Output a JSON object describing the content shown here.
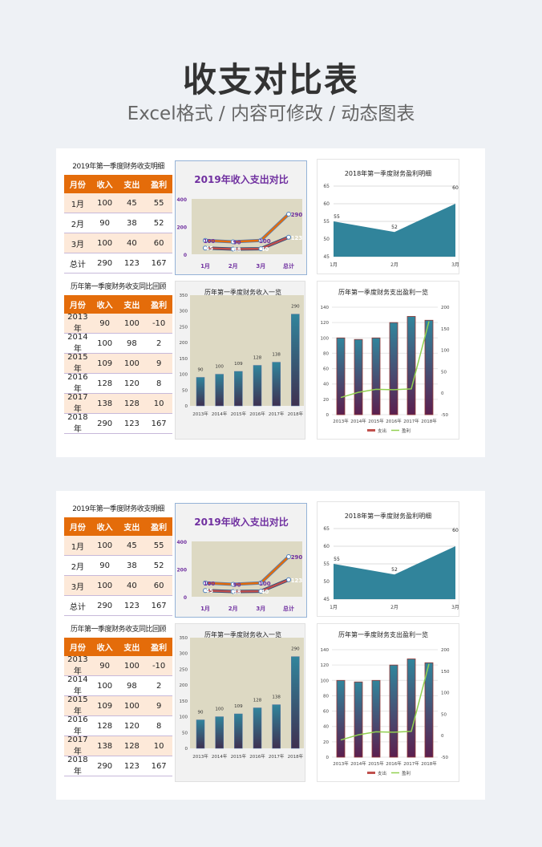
{
  "header": {
    "title": "收支对比表",
    "subtitle": "Excel格式 / 内容可修改 / 动态图表"
  },
  "quarter_table": {
    "caption": "2019年第一季度财务收支明细",
    "columns": [
      "月份",
      "收入",
      "支出",
      "盈利"
    ],
    "rows": [
      [
        "1月",
        "100",
        "45",
        "55"
      ],
      [
        "2月",
        "90",
        "38",
        "52"
      ],
      [
        "3月",
        "100",
        "40",
        "60"
      ],
      [
        "总计",
        "290",
        "123",
        "167"
      ]
    ]
  },
  "history_table": {
    "caption": "历年第一季度财务收支同比回顾",
    "columns": [
      "月份",
      "收入",
      "支出",
      "盈利"
    ],
    "rows": [
      [
        "2013年",
        "90",
        "100",
        "-10"
      ],
      [
        "2014年",
        "100",
        "98",
        "2"
      ],
      [
        "2015年",
        "109",
        "100",
        "9"
      ],
      [
        "2016年",
        "128",
        "120",
        "8"
      ],
      [
        "2017年",
        "138",
        "128",
        "10"
      ],
      [
        "2018年",
        "290",
        "123",
        "167"
      ]
    ]
  },
  "chart_data": [
    {
      "type": "line",
      "title": "2019年收入支出对比",
      "categories": [
        "1月",
        "2月",
        "3月",
        "总计"
      ],
      "ylim": [
        0,
        400
      ],
      "yticks": [
        "0",
        "200",
        "400"
      ],
      "series": [
        {
          "name": "收入",
          "values": [
            100,
            90,
            100,
            290
          ]
        },
        {
          "name": "支出",
          "values": [
            45,
            38,
            40,
            123
          ]
        }
      ]
    },
    {
      "type": "area",
      "title": "2018年第一季度财务盈利明细",
      "categories": [
        "1月",
        "2月",
        "3月"
      ],
      "ylim": [
        45,
        65
      ],
      "yticks": [
        "45",
        "50",
        "55",
        "60",
        "65"
      ],
      "series": [
        {
          "name": "盈利",
          "values": [
            55,
            52,
            60
          ]
        }
      ]
    },
    {
      "type": "bar",
      "title": "历年第一季度财务收入一览",
      "categories": [
        "2013年",
        "2014年",
        "2015年",
        "2016年",
        "2017年",
        "2018年"
      ],
      "ylim": [
        0,
        350
      ],
      "yticks": [
        "0",
        "50",
        "100",
        "150",
        "200",
        "250",
        "300",
        "350"
      ],
      "series": [
        {
          "name": "收入",
          "values": [
            90,
            100,
            109,
            128,
            138,
            290
          ]
        }
      ]
    },
    {
      "type": "bar",
      "title": "历年第一季度财务支出盈利一览",
      "categories": [
        "2013年",
        "2014年",
        "2015年",
        "2016年",
        "2017年",
        "2018年"
      ],
      "ylim": [
        0,
        140
      ],
      "y2lim": [
        -50,
        200
      ],
      "yticks": [
        "0",
        "20",
        "40",
        "60",
        "80",
        "100",
        "120",
        "140"
      ],
      "y2ticks": [
        "-50",
        "0",
        "50",
        "100",
        "150",
        "200"
      ],
      "series": [
        {
          "name": "支出",
          "values": [
            100,
            98,
            100,
            120,
            128,
            123
          ]
        },
        {
          "name": "盈利",
          "values": [
            -10,
            2,
            9,
            8,
            10,
            167
          ],
          "axis": "secondary"
        }
      ]
    }
  ],
  "colors": {
    "orange": "#e46c0a",
    "area": "#31849b",
    "line": "#92d050",
    "bar_top": "#31859c",
    "bar_bottom": "#3f3151",
    "expense": "#c0504d"
  }
}
